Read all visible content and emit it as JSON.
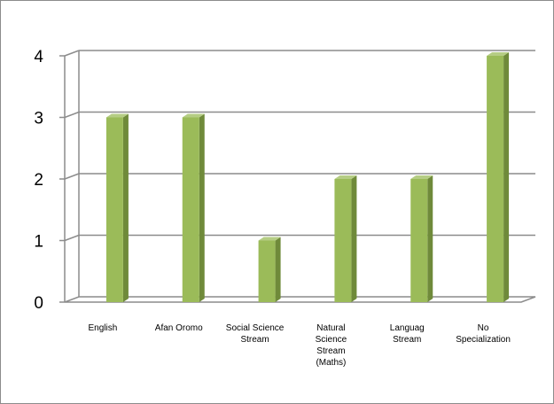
{
  "chart_data": {
    "type": "bar",
    "title": "",
    "xlabel": "",
    "ylabel": "",
    "categories": [
      "English",
      "Afan Oromo",
      "Social Science Stream",
      "Natural Science Stream (Maths)",
      "Languag Stream",
      "No Specialization"
    ],
    "category_label_lines": [
      [
        "English"
      ],
      [
        "Afan Oromo"
      ],
      [
        "Social Science",
        "Stream"
      ],
      [
        "Natural",
        "Science",
        "Stream",
        "(Maths)"
      ],
      [
        "Languag",
        "Stream"
      ],
      [
        "No",
        "Specialization"
      ]
    ],
    "values": [
      3,
      3,
      1,
      2,
      2,
      4
    ],
    "ylim": [
      0,
      4
    ],
    "yticks": [
      "0",
      "1",
      "2",
      "3",
      "4"
    ],
    "grid": true,
    "legend": "none",
    "bar_color": "#9bbb59",
    "bar_side_color": "#6f8a3a",
    "bar_top_color": "#b5cd84",
    "grid_color": "#8c8c8c"
  }
}
